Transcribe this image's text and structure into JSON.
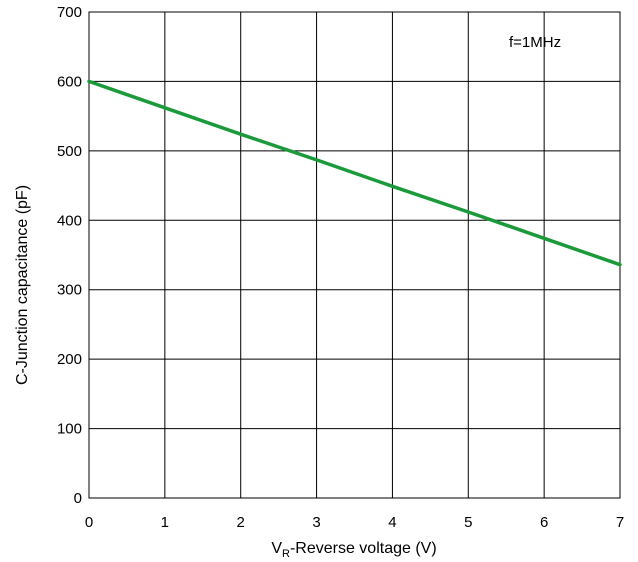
{
  "chart_data": {
    "type": "line",
    "title": "",
    "xlabel_main": "V",
    "xlabel_sub": "R",
    "xlabel_rest": "-Reverse voltage (V)",
    "ylabel": "C-Junction capacitance (pF)",
    "annotation": "f=1MHz",
    "xlim": [
      0,
      7
    ],
    "ylim": [
      0,
      700
    ],
    "x_ticks": [
      "0",
      "1",
      "2",
      "3",
      "4",
      "5",
      "6",
      "7"
    ],
    "y_ticks": [
      "0",
      "100",
      "200",
      "300",
      "400",
      "500",
      "600",
      "700"
    ],
    "grid": true,
    "series_color": "#1a9a3a",
    "series": [
      {
        "x": [
          0,
          1,
          2,
          3,
          4,
          5,
          6,
          7
        ],
        "y": [
          600,
          562,
          524,
          487,
          449,
          412,
          374,
          336
        ]
      }
    ]
  }
}
